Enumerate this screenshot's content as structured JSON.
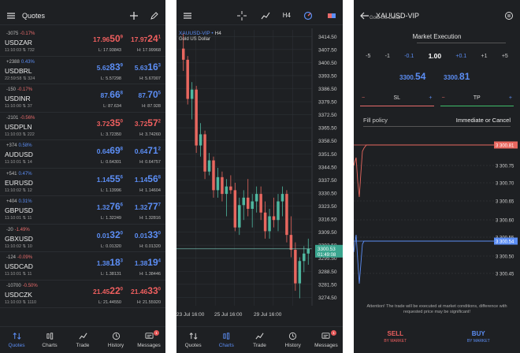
{
  "quotes": {
    "title": "Quotes",
    "rows": [
      {
        "chg": "-3075",
        "pct": "-0.17%",
        "sym": "USDZAR",
        "time": "11:10:03",
        "spread": "732",
        "bid_main": "17.96",
        "bid_big": "50",
        "bid_sup": "9",
        "ask_main": "17.97",
        "ask_big": "24",
        "ask_sup": "1",
        "low": "L: 17.93843",
        "high": "H: 17.99968",
        "dir": "neg"
      },
      {
        "chg": "+2388",
        "pct": "0.43%",
        "sym": "USDBRL",
        "time": "22:59:58",
        "spread": "324",
        "bid_main": "5.62",
        "bid_big": "83",
        "bid_sup": "9",
        "ask_main": "5.63",
        "ask_big": "16",
        "ask_sup": "3",
        "low": "L: 5.57298",
        "high": "H: 5.67007",
        "dir": "pos"
      },
      {
        "chg": "-150",
        "pct": "-0.17%",
        "sym": "USDINR",
        "time": "11:10:00",
        "spread": "37",
        "bid_main": "87.",
        "bid_big": "66",
        "bid_sup": "8",
        "ask_main": "87.",
        "ask_big": "70",
        "ask_sup": "5",
        "low": "L: 87.634",
        "high": "H: 87.928",
        "dir": "pos"
      },
      {
        "chg": "-2101",
        "pct": "-0.56%",
        "sym": "USDPLN",
        "time": "11:10:03",
        "spread": "222",
        "bid_main": "3.72",
        "bid_big": "35",
        "bid_sup": "0",
        "ask_main": "3.72",
        "ask_big": "57",
        "ask_sup": "2",
        "low": "L: 3.72350",
        "high": "H: 3.74260",
        "dir": "neg"
      },
      {
        "chg": "+374",
        "pct": "0.58%",
        "sym": "AUDUSD",
        "time": "11:10:01",
        "spread": "14",
        "bid_main": "0.64",
        "bid_big": "69",
        "bid_sup": "8",
        "ask_main": "0.64",
        "ask_big": "71",
        "ask_sup": "2",
        "low": "L: 0.64301",
        "high": "H: 0.64757",
        "dir": "pos"
      },
      {
        "chg": "+541",
        "pct": "0.47%",
        "sym": "EURUSD",
        "time": "11:10:02",
        "spread": "12",
        "bid_main": "1.14",
        "bid_big": "55",
        "bid_sup": "6",
        "ask_main": "1.14",
        "ask_big": "56",
        "ask_sup": "8",
        "low": "L: 1.13996",
        "high": "H: 1.14604",
        "dir": "pos"
      },
      {
        "chg": "+404",
        "pct": "0.31%",
        "sym": "GBPUSD",
        "time": "11:10:01",
        "spread": "11",
        "bid_main": "1.32",
        "bid_big": "76",
        "bid_sup": "6",
        "ask_main": "1.32",
        "ask_big": "77",
        "ask_sup": "7",
        "low": "L: 1.32249",
        "high": "H: 1.32816",
        "dir": "pos"
      },
      {
        "chg": "-20",
        "pct": "-1.49%",
        "sym": "GBXUSD",
        "time": "11:10:02",
        "spread": "10",
        "bid_main": "0.01",
        "bid_big": "32",
        "bid_sup": "0",
        "ask_main": "0.01",
        "ask_big": "33",
        "ask_sup": "0",
        "low": "L: 0.01320",
        "high": "H: 0.01320",
        "dir": "pos"
      },
      {
        "chg": "-124",
        "pct": "-0.09%",
        "sym": "USDCAD",
        "time": "11:10:01",
        "spread": "11",
        "bid_main": "1.38",
        "bid_big": "18",
        "bid_sup": "3",
        "ask_main": "1.38",
        "ask_big": "19",
        "ask_sup": "4",
        "low": "L: 1.38131",
        "high": "H: 1.38446",
        "dir": "pos"
      },
      {
        "chg": "-10700",
        "pct": "-0.50%",
        "sym": "USDCZK",
        "time": "11:10:03",
        "spread": "1110",
        "bid_main": "21.45",
        "bid_big": "22",
        "bid_sup": "0",
        "ask_main": "21.46",
        "ask_big": "33",
        "ask_sup": "0",
        "low": "L: 21.44550",
        "high": "H: 21.55920",
        "dir": "neg"
      }
    ]
  },
  "nav": {
    "items": [
      {
        "label": "Quotes",
        "icon": "quotes-icon"
      },
      {
        "label": "Charts",
        "icon": "charts-icon"
      },
      {
        "label": "Trade",
        "icon": "trade-icon"
      },
      {
        "label": "History",
        "icon": "history-icon"
      },
      {
        "label": "Messages",
        "icon": "messages-icon"
      }
    ],
    "badge": "1"
  },
  "chart": {
    "symbol": "XAUUSD-VIP",
    "timeframe": "H4",
    "description": "Gold US Dollar",
    "timeframe_button": "H4",
    "price_labels": [
      "3414.50",
      "3407.50",
      "3400.50",
      "3393.50",
      "3386.50",
      "3379.50",
      "3372.50",
      "3365.50",
      "3358.50",
      "3351.50",
      "3344.50",
      "3337.50",
      "3330.50",
      "3323.50",
      "3316.50",
      "3309.50",
      "3302.50",
      "3295.50",
      "3288.50",
      "3281.50",
      "3274.50"
    ],
    "current_price": "3300.53",
    "countdown": "01:49:08",
    "date_labels": [
      "23 Jul 16:00",
      "25 Jul 16:00",
      "29 Jul 16:00"
    ]
  },
  "trade": {
    "symbol": "XAUUSD-VIP",
    "description": "Gold US Dollar",
    "execution": "Market Execution",
    "volumes": [
      "-5",
      "-1",
      "-0.1",
      "1.00",
      "+0.1",
      "+1",
      "+5"
    ],
    "bid_small": "3300.",
    "bid_big": "54",
    "ask_small": "3300.",
    "ask_big": "81",
    "sl_label": "SL",
    "tp_label": "TP",
    "minus": "−",
    "plus": "+",
    "fill_label": "Fill policy",
    "fill_value": "Immediate or Cancel",
    "mini_labels": [
      "3 300.81",
      "3 300.75",
      "3 300.70",
      "3 300.65",
      "3 300.60",
      "3 300.55",
      "3 300.54",
      "3 300.50",
      "3 300.45"
    ],
    "warning": "Attention! The trade will be executed at market conditions, difference with requested price may be significant!",
    "sell_label": "SELL",
    "sell_sub": "BY MARKET",
    "buy_label": "BUY",
    "buy_sub": "BY MARKET"
  },
  "chart_data": {
    "type": "candlestick",
    "ylim": [
      3270,
      3418
    ],
    "candles": [
      [
        3408,
        3416,
        3396,
        3402
      ],
      [
        3402,
        3404,
        3378,
        3381
      ],
      [
        3381,
        3390,
        3370,
        3386
      ],
      [
        3386,
        3388,
        3352,
        3356
      ],
      [
        3356,
        3368,
        3350,
        3362
      ],
      [
        3362,
        3364,
        3338,
        3342
      ],
      [
        3342,
        3352,
        3340,
        3348
      ],
      [
        3348,
        3350,
        3328,
        3332
      ],
      [
        3332,
        3344,
        3328,
        3339
      ],
      [
        3339,
        3342,
        3326,
        3330
      ],
      [
        3330,
        3338,
        3318,
        3334
      ],
      [
        3334,
        3340,
        3330,
        3332
      ],
      [
        3332,
        3336,
        3310,
        3312
      ],
      [
        3312,
        3328,
        3308,
        3324
      ],
      [
        3324,
        3332,
        3316,
        3328
      ],
      [
        3328,
        3338,
        3318,
        3322
      ],
      [
        3322,
        3330,
        3312,
        3326
      ],
      [
        3326,
        3334,
        3320,
        3330
      ],
      [
        3330,
        3334,
        3316,
        3320
      ],
      [
        3320,
        3326,
        3306,
        3310
      ],
      [
        3310,
        3322,
        3306,
        3318
      ],
      [
        3318,
        3328,
        3312,
        3316
      ],
      [
        3316,
        3330,
        3310,
        3326
      ],
      [
        3326,
        3334,
        3318,
        3330
      ],
      [
        3330,
        3332,
        3304,
        3308
      ],
      [
        3308,
        3318,
        3296,
        3300
      ],
      [
        3300,
        3304,
        3278,
        3282
      ],
      [
        3282,
        3296,
        3274,
        3294
      ],
      [
        3294,
        3302,
        3288,
        3298
      ],
      [
        3298,
        3306,
        3292,
        3300.53
      ]
    ]
  }
}
